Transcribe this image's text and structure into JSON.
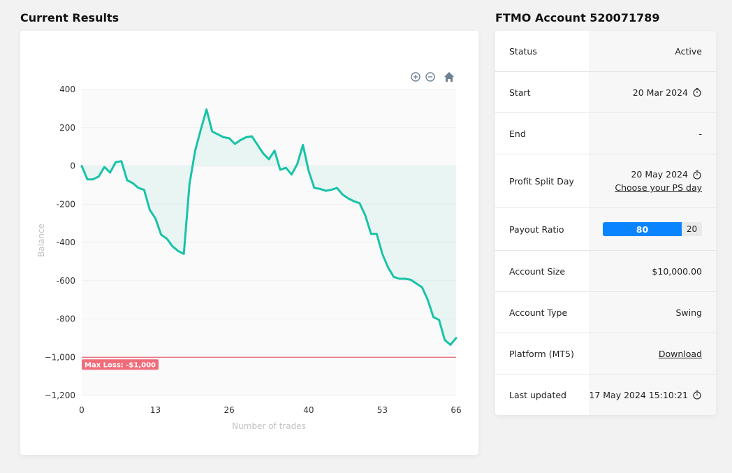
{
  "results": {
    "title": "Current Results"
  },
  "account": {
    "title": "FTMO Account 520071789",
    "status_label": "Status",
    "status_value": "Active",
    "start_label": "Start",
    "start_value": "20 Mar 2024",
    "end_label": "End",
    "end_value": "-",
    "split_label": "Profit Split Day",
    "split_value": "20 May 2024",
    "split_link": "Choose your PS day",
    "payout_label": "Payout Ratio",
    "payout_trader": "80",
    "payout_ftmo": "20",
    "size_label": "Account Size",
    "size_value": "$10,000.00",
    "type_label": "Account Type",
    "type_value": "Swing",
    "platform_label": "Platform (MT5)",
    "platform_link": "Download",
    "updated_label": "Last updated",
    "updated_value": "17 May 2024 15:10:21"
  },
  "chart_data": {
    "type": "line",
    "title": "",
    "xlabel": "Number of trades",
    "ylabel": "Balance",
    "xlim": [
      0,
      66
    ],
    "ylim": [
      -1200,
      400
    ],
    "x_ticks": [
      0,
      13,
      26,
      40,
      53,
      66
    ],
    "y_ticks": [
      400,
      200,
      0,
      -200,
      -400,
      -600,
      -800,
      -1000,
      -1200
    ],
    "y_tick_labels": [
      "400",
      "200",
      "0",
      "-200",
      "-400",
      "-600",
      "-800",
      "−1,000",
      "−1,200"
    ],
    "grid": true,
    "line_color": "#19c3a7",
    "series": [
      {
        "x": [
          0,
          1,
          2,
          3,
          4,
          5,
          6,
          7,
          8,
          9,
          10,
          11,
          12,
          13,
          14,
          15,
          16,
          17,
          18,
          19,
          20,
          21,
          22,
          23,
          24,
          25,
          26,
          27,
          28,
          29,
          30,
          31,
          32,
          33,
          34,
          35,
          36,
          37,
          38,
          39,
          40,
          41,
          42,
          43,
          44,
          45,
          46,
          47,
          48,
          49,
          50,
          51,
          52,
          53,
          54,
          55,
          56,
          57,
          58,
          59,
          60,
          61,
          62,
          63,
          64,
          65,
          66
        ],
        "values": [
          0,
          -70,
          -70,
          -55,
          -5,
          -35,
          20,
          25,
          -75,
          -90,
          -115,
          -125,
          -230,
          -275,
          -360,
          -380,
          -420,
          -445,
          -460,
          -95,
          80,
          190,
          295,
          180,
          165,
          150,
          145,
          115,
          135,
          150,
          155,
          110,
          65,
          35,
          80,
          -20,
          -10,
          -45,
          10,
          110,
          -25,
          -115,
          -120,
          -130,
          -125,
          -115,
          -150,
          -170,
          -185,
          -195,
          -260,
          -355,
          -355,
          -460,
          -530,
          -580,
          -590,
          -590,
          -595,
          -615,
          -635,
          -700,
          -790,
          -805,
          -910,
          -935,
          -900
        ]
      }
    ],
    "threshold": {
      "value": -1000,
      "label": "Max Loss: -$1,000",
      "color": "#e43d4d"
    }
  }
}
